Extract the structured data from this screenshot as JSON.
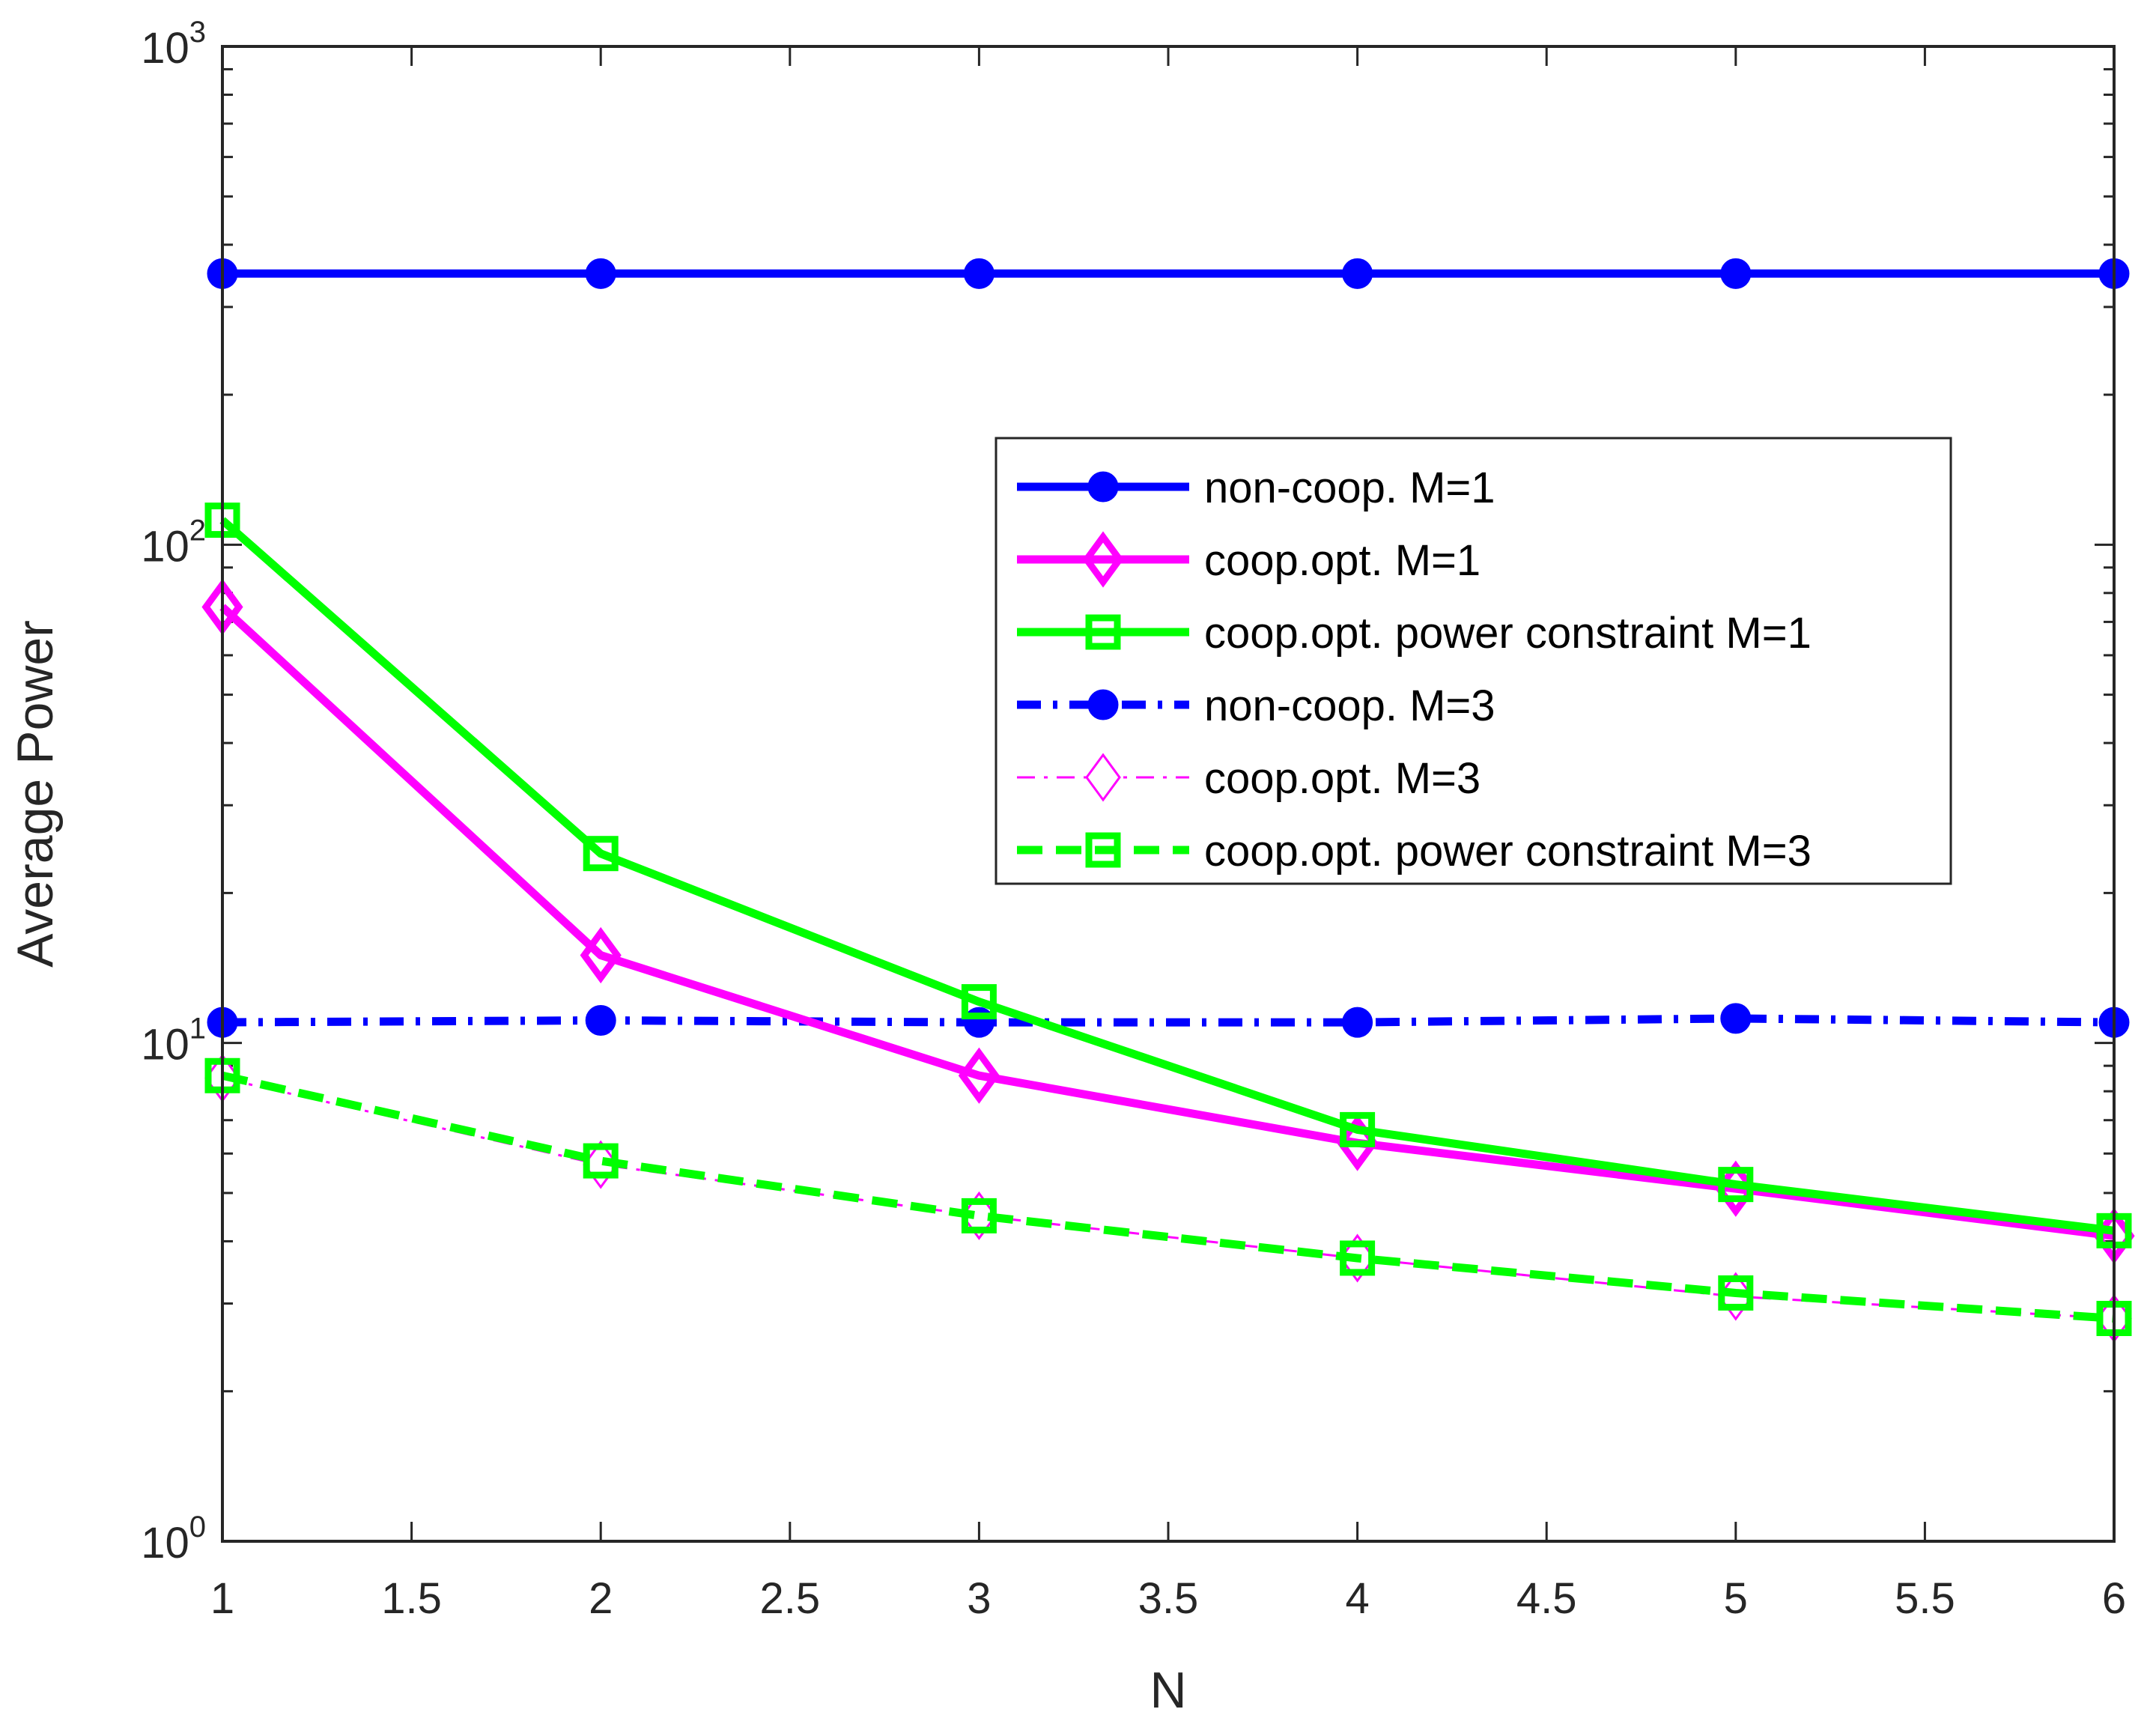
{
  "chart_data": {
    "type": "line",
    "title": "",
    "xlabel": "N",
    "ylabel": "Average Power",
    "xscale": "linear",
    "yscale": "log",
    "xlim": [
      1,
      6
    ],
    "ylim": [
      1,
      1000
    ],
    "x": [
      1,
      2,
      3,
      4,
      5,
      6
    ],
    "x_ticks": [
      1,
      1.5,
      2,
      2.5,
      3,
      3.5,
      4,
      4.5,
      5,
      5.5,
      6
    ],
    "x_tick_labels": [
      "1",
      "1.5",
      "2",
      "2.5",
      "3",
      "3.5",
      "4",
      "4.5",
      "5",
      "5.5",
      "6"
    ],
    "y_ticks": [
      {
        "value": 1,
        "base": "10",
        "exp": "0"
      },
      {
        "value": 10,
        "base": "10",
        "exp": "1"
      },
      {
        "value": 100,
        "base": "10",
        "exp": "2"
      },
      {
        "value": 1000,
        "base": "10",
        "exp": "3"
      }
    ],
    "grid": false,
    "legend_position": "upper-right (inside)",
    "series": [
      {
        "name": "non-coop. M=1",
        "values": [
          350,
          350,
          350,
          350,
          350,
          350
        ],
        "color": "#0000ff",
        "style": "solid",
        "marker": "circle",
        "width": "thick"
      },
      {
        "name": "coop.opt. M=1",
        "values": [
          75,
          15,
          8.6,
          6.3,
          5.1,
          4.1
        ],
        "color": "#ff00ff",
        "style": "solid",
        "marker": "diamond",
        "width": "thick"
      },
      {
        "name": "coop.opt. power constraint M=1",
        "values": [
          112,
          24,
          12.1,
          6.7,
          5.2,
          4.2
        ],
        "color": "#00ff00",
        "style": "solid",
        "marker": "square",
        "width": "thick"
      },
      {
        "name": "non-coop. M=3",
        "values": [
          11.0,
          11.1,
          11.0,
          11.0,
          11.2,
          11.0
        ],
        "color": "#0000ff",
        "style": "dashdot",
        "marker": "circle",
        "width": "thick"
      },
      {
        "name": "coop.opt. M=3",
        "values": [
          8.5,
          5.7,
          4.5,
          3.7,
          3.1,
          2.8
        ],
        "color": "#ff00ff",
        "style": "dashdot",
        "marker": "diamond",
        "width": "thin"
      },
      {
        "name": "coop.opt. power constraint M=3",
        "values": [
          8.6,
          5.8,
          4.5,
          3.7,
          3.15,
          2.8
        ],
        "color": "#00ff00",
        "style": "dashed",
        "marker": "square",
        "width": "thick"
      }
    ]
  }
}
